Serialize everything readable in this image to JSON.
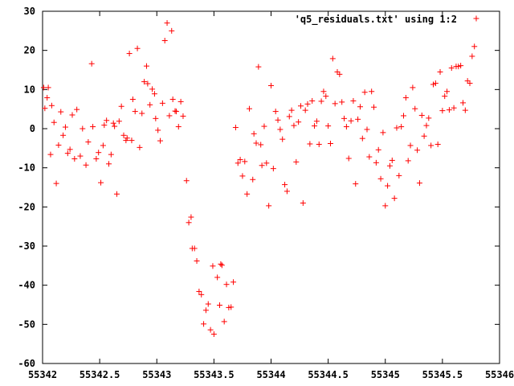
{
  "chart_data": {
    "type": "scatter",
    "title": "",
    "xlabel": "",
    "ylabel": "",
    "xlim": [
      55342,
      55346
    ],
    "ylim": [
      -60,
      30
    ],
    "xticks": [
      {
        "value": 55342,
        "label": "55342"
      },
      {
        "value": 55342.5,
        "label": "55342.5"
      },
      {
        "value": 55343,
        "label": "55343"
      },
      {
        "value": 55343.5,
        "label": "55343.5"
      },
      {
        "value": 55344,
        "label": "55344"
      },
      {
        "value": 55344.5,
        "label": "55344.5"
      },
      {
        "value": 55345,
        "label": "55345"
      },
      {
        "value": 55345.5,
        "label": "55345.5"
      },
      {
        "value": 55346,
        "label": "55346"
      }
    ],
    "yticks": [
      {
        "value": 30,
        "label": "30"
      },
      {
        "value": 20,
        "label": "20"
      },
      {
        "value": 10,
        "label": "10"
      },
      {
        "value": 0,
        "label": "0"
      },
      {
        "value": -10,
        "label": "-10"
      },
      {
        "value": -20,
        "label": "-20"
      },
      {
        "value": -30,
        "label": "-30"
      },
      {
        "value": -40,
        "label": "-40"
      },
      {
        "value": -50,
        "label": "-50"
      },
      {
        "value": -60,
        "label": "-60"
      }
    ],
    "grid": false,
    "legend_position": "top-right",
    "marker_color": "#ff0000",
    "series": [
      {
        "name": "'q5_residuals.txt' using 1:2",
        "points": [
          [
            55342.01,
            10.5
          ],
          [
            55342.02,
            5.2
          ],
          [
            55342.04,
            7.9
          ],
          [
            55342.05,
            10.5
          ],
          [
            55342.07,
            -6.6
          ],
          [
            55342.08,
            5.9
          ],
          [
            55342.1,
            1.6
          ],
          [
            55342.12,
            -14.0
          ],
          [
            55342.14,
            -4.2
          ],
          [
            55342.16,
            4.3
          ],
          [
            55342.18,
            -1.7
          ],
          [
            55342.2,
            0.4
          ],
          [
            55342.22,
            -6.3
          ],
          [
            55342.24,
            -5.3
          ],
          [
            55342.26,
            3.5
          ],
          [
            55342.28,
            -7.7
          ],
          [
            55342.3,
            4.9
          ],
          [
            55342.33,
            -7.0
          ],
          [
            55342.35,
            0.0
          ],
          [
            55342.38,
            -9.3
          ],
          [
            55342.4,
            -3.4
          ],
          [
            55342.43,
            16.6
          ],
          [
            55342.44,
            0.5
          ],
          [
            55342.47,
            -7.7
          ],
          [
            55342.49,
            -6.1
          ],
          [
            55342.51,
            -13.8
          ],
          [
            55342.53,
            -4.3
          ],
          [
            55342.54,
            0.9
          ],
          [
            55342.56,
            2.1
          ],
          [
            55342.58,
            -9.0
          ],
          [
            55342.6,
            -6.6
          ],
          [
            55342.62,
            1.4
          ],
          [
            55342.63,
            0.6
          ],
          [
            55342.65,
            -16.7
          ],
          [
            55342.67,
            1.9
          ],
          [
            55342.69,
            5.7
          ],
          [
            55342.71,
            -1.7
          ],
          [
            55342.73,
            -3.0
          ],
          [
            55342.74,
            -2.4
          ],
          [
            55342.76,
            19.2
          ],
          [
            55342.78,
            -3.0
          ],
          [
            55342.79,
            7.5
          ],
          [
            55342.81,
            4.4
          ],
          [
            55342.83,
            20.5
          ],
          [
            55342.85,
            -4.8
          ],
          [
            55342.87,
            3.9
          ],
          [
            55342.89,
            12.0
          ],
          [
            55342.91,
            16.0
          ],
          [
            55342.92,
            11.5
          ],
          [
            55342.94,
            6.1
          ],
          [
            55342.96,
            10.1
          ],
          [
            55342.98,
            8.9
          ],
          [
            55342.99,
            2.6
          ],
          [
            55343.01,
            -0.4
          ],
          [
            55343.03,
            -3.1
          ],
          [
            55343.05,
            6.5
          ],
          [
            55343.07,
            22.5
          ],
          [
            55343.09,
            27.0
          ],
          [
            55343.11,
            3.3
          ],
          [
            55343.13,
            25.0
          ],
          [
            55343.14,
            7.5
          ],
          [
            55343.16,
            4.5
          ],
          [
            55343.17,
            4.4
          ],
          [
            55343.19,
            0.5
          ],
          [
            55343.21,
            6.9
          ],
          [
            55343.23,
            3.2
          ],
          [
            55343.26,
            -13.3
          ],
          [
            55343.28,
            -24.0
          ],
          [
            55343.3,
            -22.6
          ],
          [
            55343.31,
            -30.6
          ],
          [
            55343.33,
            -30.6
          ],
          [
            55343.35,
            -33.8
          ],
          [
            55343.37,
            -41.6
          ],
          [
            55343.39,
            -42.4
          ],
          [
            55343.41,
            -49.9
          ],
          [
            55343.43,
            -46.4
          ],
          [
            55343.45,
            -44.8
          ],
          [
            55343.47,
            -51.4
          ],
          [
            55343.5,
            -52.5
          ],
          [
            55343.49,
            -35.1
          ],
          [
            55343.53,
            -38.0
          ],
          [
            55343.55,
            -45.1
          ],
          [
            55343.56,
            -34.6
          ],
          [
            55343.57,
            -34.9
          ],
          [
            55343.59,
            -49.3
          ],
          [
            55343.61,
            -39.8
          ],
          [
            55343.63,
            -45.7
          ],
          [
            55343.65,
            -45.6
          ],
          [
            55343.67,
            -39.2
          ],
          [
            55343.69,
            0.3
          ],
          [
            55343.71,
            -8.8
          ],
          [
            55343.73,
            -7.9
          ],
          [
            55343.75,
            -12.1
          ],
          [
            55343.77,
            -8.4
          ],
          [
            55343.79,
            -16.7
          ],
          [
            55343.81,
            5.1
          ],
          [
            55343.84,
            -13.0
          ],
          [
            55343.85,
            -1.3
          ],
          [
            55343.87,
            -3.7
          ],
          [
            55343.89,
            15.8
          ],
          [
            55343.91,
            -4.1
          ],
          [
            55343.92,
            -9.4
          ],
          [
            55343.94,
            0.6
          ],
          [
            55343.96,
            -8.8
          ],
          [
            55343.98,
            -19.7
          ],
          [
            55344.0,
            11.0
          ],
          [
            55344.02,
            -10.2
          ],
          [
            55344.04,
            4.4
          ],
          [
            55344.06,
            2.2
          ],
          [
            55344.08,
            -0.2
          ],
          [
            55344.1,
            -2.7
          ],
          [
            55344.12,
            -14.3
          ],
          [
            55344.14,
            -16.0
          ],
          [
            55344.16,
            3.1
          ],
          [
            55344.18,
            4.7
          ],
          [
            55344.2,
            0.8
          ],
          [
            55344.22,
            -8.5
          ],
          [
            55344.24,
            1.7
          ],
          [
            55344.26,
            5.8
          ],
          [
            55344.28,
            -19.0
          ],
          [
            55344.3,
            4.7
          ],
          [
            55344.32,
            6.3
          ],
          [
            55344.34,
            -3.9
          ],
          [
            55344.36,
            7.1
          ],
          [
            55344.38,
            0.7
          ],
          [
            55344.4,
            1.9
          ],
          [
            55344.42,
            -4.0
          ],
          [
            55344.44,
            7.0
          ],
          [
            55344.46,
            9.5
          ],
          [
            55344.48,
            8.3
          ],
          [
            55344.5,
            0.7
          ],
          [
            55344.52,
            -3.8
          ],
          [
            55344.54,
            17.9
          ],
          [
            55344.56,
            6.4
          ],
          [
            55344.58,
            14.5
          ],
          [
            55344.6,
            13.9
          ],
          [
            55344.62,
            6.8
          ],
          [
            55344.64,
            2.6
          ],
          [
            55344.66,
            0.5
          ],
          [
            55344.68,
            -7.6
          ],
          [
            55344.7,
            2.0
          ],
          [
            55344.72,
            7.1
          ],
          [
            55344.74,
            -14.1
          ],
          [
            55344.76,
            2.4
          ],
          [
            55344.78,
            5.6
          ],
          [
            55344.8,
            -2.5
          ],
          [
            55344.82,
            9.3
          ],
          [
            55344.84,
            -0.2
          ],
          [
            55344.86,
            -7.2
          ],
          [
            55344.88,
            9.5
          ],
          [
            55344.9,
            5.5
          ],
          [
            55344.92,
            -8.7
          ],
          [
            55344.94,
            -5.4
          ],
          [
            55344.96,
            -12.8
          ],
          [
            55344.98,
            -1.0
          ],
          [
            55345.0,
            -19.7
          ],
          [
            55345.02,
            -14.6
          ],
          [
            55345.04,
            -9.5
          ],
          [
            55345.06,
            -8.1
          ],
          [
            55345.08,
            -17.8
          ],
          [
            55345.1,
            0.2
          ],
          [
            55345.12,
            -12.0
          ],
          [
            55345.14,
            0.5
          ],
          [
            55345.16,
            3.3
          ],
          [
            55345.18,
            7.9
          ],
          [
            55345.2,
            -8.2
          ],
          [
            55345.22,
            -4.3
          ],
          [
            55345.24,
            10.5
          ],
          [
            55345.26,
            5.1
          ],
          [
            55345.28,
            -5.5
          ],
          [
            55345.3,
            -13.9
          ],
          [
            55345.32,
            3.4
          ],
          [
            55345.34,
            -1.9
          ],
          [
            55345.36,
            0.8
          ],
          [
            55345.38,
            2.7
          ],
          [
            55345.4,
            -4.3
          ],
          [
            55345.42,
            11.3
          ],
          [
            55345.44,
            11.6
          ],
          [
            55345.46,
            -4.0
          ],
          [
            55345.48,
            14.5
          ],
          [
            55345.5,
            4.6
          ],
          [
            55345.52,
            8.3
          ],
          [
            55345.54,
            9.5
          ],
          [
            55345.56,
            4.8
          ],
          [
            55345.58,
            15.5
          ],
          [
            55345.6,
            5.3
          ],
          [
            55345.62,
            15.9
          ],
          [
            55345.64,
            15.9
          ],
          [
            55345.66,
            16.1
          ],
          [
            55345.68,
            6.6
          ],
          [
            55345.7,
            4.7
          ],
          [
            55345.72,
            12.2
          ],
          [
            55345.74,
            11.6
          ],
          [
            55345.76,
            18.5
          ],
          [
            55345.78,
            21.0
          ]
        ]
      }
    ]
  }
}
